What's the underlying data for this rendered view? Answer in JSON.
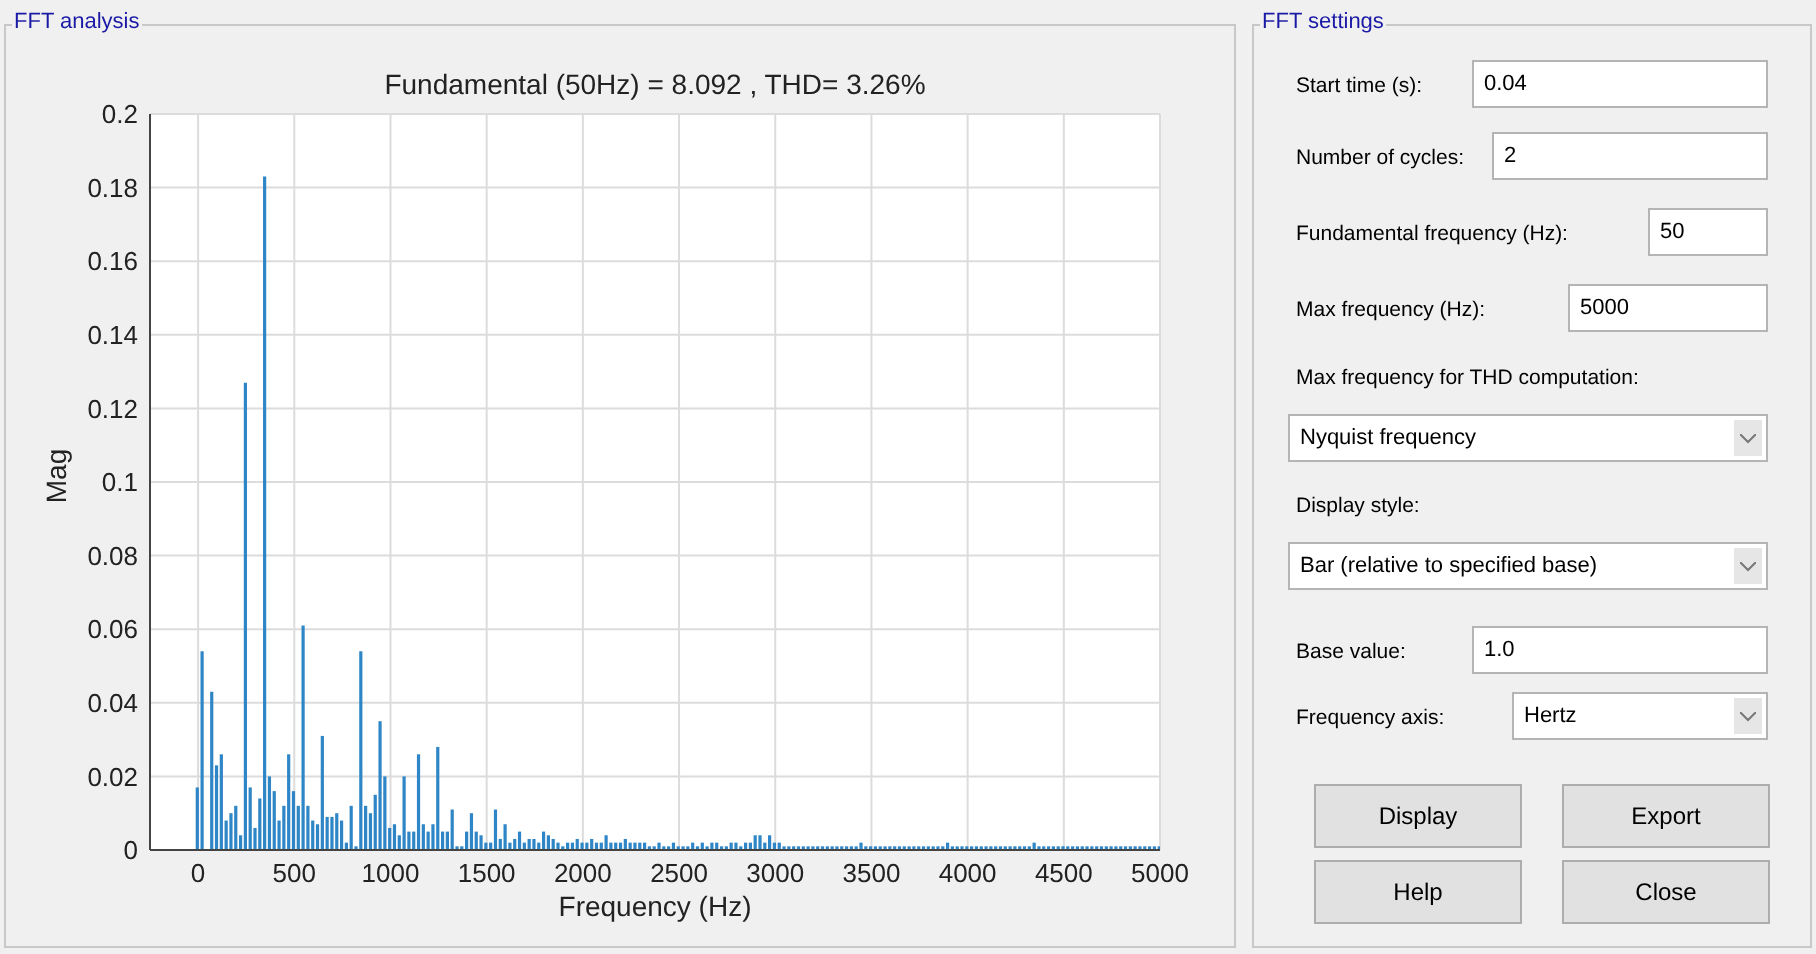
{
  "chart_data": [
    {
      "type": "bar",
      "title": "Fundamental (50Hz) = 8.092 , THD= 3.26%",
      "xlabel": "Frequency (Hz)",
      "ylabel": "Mag",
      "annotations": [
        "FFT analysis"
      ],
      "x": [
        0,
        25,
        50,
        75,
        100,
        125,
        150,
        175,
        200,
        225,
        250,
        275,
        300,
        325,
        350,
        375,
        400,
        425,
        450,
        475,
        500,
        525,
        550,
        575,
        600,
        625,
        650,
        675,
        700,
        725,
        750,
        775,
        800,
        825,
        850,
        875,
        900,
        925,
        950,
        975,
        1000,
        1025,
        1050,
        1075,
        1100,
        1125,
        1150,
        1175,
        1200,
        1225,
        1250,
        1275,
        1300,
        1325,
        1350,
        1375,
        1400,
        1425,
        1450,
        1475,
        1500,
        1525,
        1550,
        1575,
        1600,
        1625,
        1650,
        1675,
        1700,
        1725,
        1750,
        1775,
        1800,
        1825,
        1850,
        1875,
        1900,
        1925,
        1950,
        1975,
        2000,
        2025,
        2050,
        2075,
        2100,
        2125,
        2150,
        2175,
        2200,
        2225,
        2250,
        2275,
        2300,
        2325,
        2350,
        2375,
        2400,
        2425,
        2450,
        2475,
        2500,
        2525,
        2550,
        2575,
        2600,
        2625,
        2650,
        2675,
        2700,
        2725,
        2750,
        2775,
        2800,
        2825,
        2850,
        2875,
        2900,
        2925,
        2950,
        2975,
        3000,
        3025,
        3050,
        3075,
        3100,
        3125,
        3150,
        3175,
        3200,
        3225,
        3250,
        3275,
        3300,
        3325,
        3350,
        3375,
        3400,
        3425,
        3450,
        3475,
        3500,
        3525,
        3550,
        3575,
        3600,
        3625,
        3650,
        3675,
        3700,
        3725,
        3750,
        3775,
        3800,
        3825,
        3850,
        3875,
        3900,
        3925,
        3950,
        3975,
        4000,
        4025,
        4050,
        4075,
        4100,
        4125,
        4150,
        4175,
        4200,
        4225,
        4250,
        4275,
        4300,
        4325,
        4350,
        4375,
        4400,
        4425,
        4450,
        4475,
        4500,
        4525,
        4550,
        4575,
        4600,
        4625,
        4650,
        4675,
        4700,
        4725,
        4750,
        4775,
        4800,
        4825,
        4850,
        4875,
        4900,
        4925,
        4950,
        4975,
        5000
      ],
      "series": [
        {
          "color": "#2f86c6",
          "values": [
            0.017,
            0.054,
            null,
            0.043,
            0.023,
            0.026,
            0.008,
            0.01,
            0.012,
            0.004,
            0.127,
            0.017,
            0.006,
            0.014,
            0.183,
            0.02,
            0.016,
            0.008,
            0.012,
            0.026,
            0.016,
            0.012,
            0.061,
            0.012,
            0.008,
            0.007,
            0.031,
            0.009,
            0.009,
            0.01,
            0.008,
            0.002,
            0.012,
            0.001,
            0.054,
            0.012,
            0.01,
            0.015,
            0.035,
            0.02,
            0.006,
            0.007,
            0.004,
            0.02,
            0.005,
            0.005,
            0.026,
            0.007,
            0.005,
            0.007,
            0.028,
            0.005,
            0.005,
            0.011,
            0.001,
            0.001,
            0.005,
            0.01,
            0.005,
            0.004,
            0.002,
            0.002,
            0.011,
            0.003,
            0.007,
            0.002,
            0.003,
            0.005,
            0.002,
            0.003,
            0.003,
            0.002,
            0.005,
            0.004,
            0.003,
            0.002,
            0.001,
            0.002,
            0.002,
            0.003,
            0.002,
            0.002,
            0.003,
            0.002,
            0.002,
            0.004,
            0.002,
            0.002,
            0.002,
            0.003,
            0.002,
            0.002,
            0.002,
            0.002,
            0.001,
            0.001,
            0.002,
            0.001,
            0.001,
            0.002,
            0.001,
            0.001,
            0.001,
            0.002,
            0.001,
            0.002,
            0.001,
            0.002,
            0.002,
            0.001,
            0.001,
            0.002,
            0.002,
            0.001,
            0.002,
            0.002,
            0.004,
            0.004,
            0.002,
            0.004,
            0.002,
            0.002,
            0.001,
            0.001,
            0.001,
            0.001,
            0.001,
            0.001,
            0.001,
            0.001,
            0.001,
            0.001,
            0.001,
            0.001,
            0.001,
            0.001,
            0.001,
            0.001,
            0.002,
            0.001,
            0.001,
            0.001,
            0.001,
            0.001,
            0.001,
            0.001,
            0.001,
            0.001,
            0.001,
            0.001,
            0.001,
            0.001,
            0.001,
            0.001,
            0.001,
            0.001,
            0.002,
            0.001,
            0.001,
            0.001,
            0.001,
            0.001,
            0.001,
            0.001,
            0.001,
            0.001,
            0.001,
            0.001,
            0.001,
            0.001,
            0.001,
            0.001,
            0.001,
            0.001,
            0.002,
            0.001,
            0.001,
            0.001,
            0.001,
            0.001,
            0.001,
            0.001,
            0.001,
            0.001,
            0.001,
            0.001,
            0.001,
            0.001,
            0.001,
            0.001,
            0.001,
            0.001,
            0.001,
            0.001,
            0.001,
            0.001,
            0.001,
            0.001,
            0.001,
            0.001,
            0.001
          ]
        }
      ],
      "xlim": [
        -250,
        5000
      ],
      "xticks": [
        0,
        500,
        1000,
        1500,
        2000,
        2500,
        3000,
        3500,
        4000,
        4500,
        5000
      ],
      "ylim": [
        0,
        0.2
      ],
      "yticks": [
        0,
        0.02,
        0.04,
        0.06,
        0.08,
        0.1,
        0.12,
        0.14,
        0.16,
        0.18,
        0.2
      ],
      "grid": true,
      "legend": false
    },
    {
      "type": "other",
      "title": "FFT settings",
      "annotations": [
        "Start time (s):",
        "0.04",
        "Number of cycles:",
        "2",
        "Fundamental frequency (Hz):",
        "50",
        "Max frequency (Hz):",
        "5000",
        "Max frequency for THD computation:",
        "Nyquist frequency",
        "Display style:",
        "Bar (relative to specified base)",
        "Base value:",
        "1.0",
        "Frequency axis:",
        "Hertz",
        "Display",
        "Export",
        "Help",
        "Close"
      ]
    }
  ]
}
